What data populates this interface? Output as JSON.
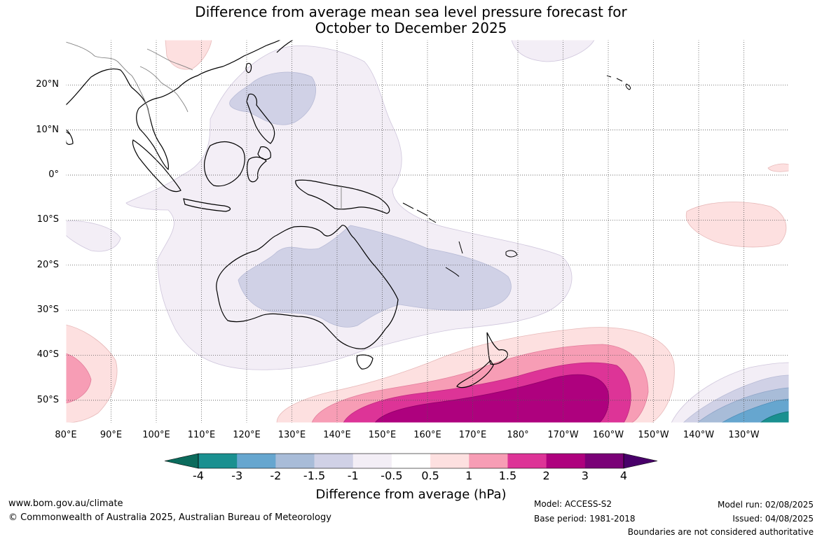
{
  "title": {
    "line1": "Difference from average mean sea level pressure forecast for",
    "line2": "October to December 2025"
  },
  "map": {
    "lat_labels": [
      "20°N",
      "10°N",
      "0°",
      "10°S",
      "20°S",
      "30°S",
      "40°S",
      "50°S"
    ],
    "lon_labels": [
      "80°E",
      "90°E",
      "100°E",
      "110°E",
      "120°E",
      "130°E",
      "140°E",
      "150°E",
      "160°E",
      "170°E",
      "180°",
      "170°W",
      "160°W",
      "150°W",
      "140°W",
      "130°W"
    ],
    "lon_range": [
      80,
      240
    ],
    "lat_range": [
      -55,
      30
    ]
  },
  "colorbar": {
    "label": "Difference from average (hPa)",
    "ticks": [
      "-4",
      "-3",
      "-2",
      "-1.5",
      "-1",
      "-0.5",
      "0.5",
      "1",
      "1.5",
      "2",
      "3",
      "4"
    ],
    "colors": [
      "#1a9090",
      "#66a6cf",
      "#a8bcd8",
      "#d0d1e6",
      "#f3eef6",
      "#ffffff",
      "#fde0e0",
      "#f79db5",
      "#dd3497",
      "#ae017e",
      "#7a0177"
    ],
    "extend_low": "#0b6b5c",
    "extend_high": "#49006a"
  },
  "footer": {
    "url": "www.bom.gov.au/climate",
    "copyright": "© Commonwealth of Australia 2025, Australian Bureau of Meteorology",
    "model": "Model: ACCESS-S2",
    "base_period": "Base period: 1981-2018",
    "model_run": "Model run: 02/08/2025",
    "issued": "Issued: 04/08/2025",
    "disclaimer": "Boundaries are not considered authoritative"
  }
}
